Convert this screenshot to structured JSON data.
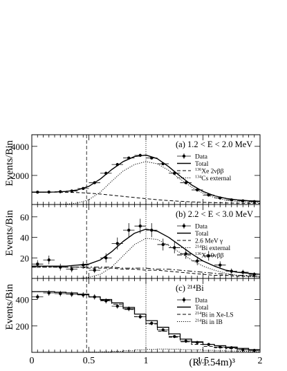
{
  "chart_data": [
    {
      "type": "line",
      "panel_label": "(a) 1.2 < E < 2.0 MeV",
      "ylabel": "Events/Bin",
      "xlim": [
        0,
        2
      ],
      "ylim": [
        0,
        4800
      ],
      "yticks": [
        2000,
        4000
      ],
      "legend_position": "top-right",
      "series": [
        {
          "name": "Data",
          "style": "points",
          "x": [
            0.05,
            0.15,
            0.25,
            0.35,
            0.45,
            0.55,
            0.65,
            0.75,
            0.85,
            0.95,
            1.05,
            1.15,
            1.25,
            1.35,
            1.45,
            1.55,
            1.65,
            1.75,
            1.85,
            1.95
          ],
          "values": [
            850,
            860,
            880,
            930,
            1100,
            1500,
            2150,
            2750,
            3200,
            3380,
            3200,
            2800,
            2150,
            1500,
            1000,
            650,
            450,
            320,
            250,
            200
          ]
        },
        {
          "name": "Total",
          "style": "solid",
          "x": [
            0,
            0.1,
            0.2,
            0.3,
            0.4,
            0.5,
            0.6,
            0.7,
            0.8,
            0.9,
            1.0,
            1.1,
            1.2,
            1.3,
            1.4,
            1.5,
            1.6,
            1.7,
            1.8,
            1.9,
            2.0
          ],
          "values": [
            850,
            850,
            860,
            900,
            1000,
            1250,
            1750,
            2400,
            2950,
            3300,
            3400,
            3150,
            2600,
            1950,
            1350,
            900,
            600,
            420,
            320,
            260,
            220
          ]
        },
        {
          "name": "Xe 2νββ",
          "sup": "136",
          "style": "dashed",
          "x": [
            0,
            0.1,
            0.2,
            0.3,
            0.4,
            0.5,
            0.6,
            0.7,
            0.8,
            0.9,
            1.0,
            1.1,
            1.2,
            1.3,
            1.4,
            1.5,
            1.6,
            1.7,
            1.8,
            1.9,
            2.0
          ],
          "values": [
            850,
            850,
            850,
            840,
            820,
            780,
            720,
            640,
            560,
            480,
            400,
            330,
            270,
            220,
            180,
            150,
            125,
            105,
            90,
            80,
            70
          ]
        },
        {
          "name": "Cs external",
          "sup": "134",
          "style": "dotted",
          "x": [
            0,
            0.1,
            0.2,
            0.3,
            0.4,
            0.5,
            0.6,
            0.7,
            0.8,
            0.9,
            1.0,
            1.1,
            1.2,
            1.3,
            1.4,
            1.5,
            1.6,
            1.7,
            1.8,
            1.9,
            2.0
          ],
          "values": [
            0,
            0,
            0,
            20,
            100,
            330,
            850,
            1600,
            2300,
            2750,
            2950,
            2800,
            2350,
            1750,
            1200,
            780,
            480,
            300,
            210,
            160,
            130
          ]
        }
      ]
    },
    {
      "type": "line",
      "panel_label": "(b) 2.2 < E < 3.0 MeV",
      "ylabel": "Events/Bin",
      "xlim": [
        0,
        2
      ],
      "ylim": [
        0,
        72
      ],
      "yticks": [
        20,
        40,
        60
      ],
      "legend_position": "top-right",
      "series": [
        {
          "name": "Data",
          "style": "points",
          "x": [
            0.05,
            0.15,
            0.25,
            0.35,
            0.45,
            0.55,
            0.65,
            0.75,
            0.85,
            0.95,
            1.05,
            1.15,
            1.25,
            1.35,
            1.45,
            1.55,
            1.65,
            1.75,
            1.85,
            1.95
          ],
          "values": [
            14,
            18,
            11,
            9,
            13,
            8,
            20,
            34,
            47,
            51,
            47,
            33,
            30,
            24,
            17,
            22,
            13,
            7,
            6,
            4
          ]
        },
        {
          "name": "Total",
          "style": "solid",
          "x": [
            0,
            0.1,
            0.2,
            0.3,
            0.4,
            0.5,
            0.6,
            0.7,
            0.8,
            0.9,
            1.0,
            1.1,
            1.2,
            1.3,
            1.4,
            1.5,
            1.6,
            1.7,
            1.8,
            1.9,
            2.0
          ],
          "values": [
            12,
            12,
            12,
            12,
            13,
            14,
            18,
            26,
            36,
            44,
            48,
            46,
            40,
            32,
            24,
            17,
            12,
            8,
            6,
            5,
            4
          ]
        },
        {
          "name": "2.6 MeV γ",
          "style": "dashed",
          "x": [
            0,
            0.1,
            0.2,
            0.3,
            0.4,
            0.5,
            0.6,
            0.7,
            0.8,
            0.9,
            1.0,
            1.1,
            1.2,
            1.3,
            1.4,
            1.5,
            1.6,
            1.7,
            1.8,
            1.9,
            2.0
          ],
          "values": [
            11,
            11,
            11,
            11,
            11,
            10,
            10,
            10,
            9,
            9,
            8,
            8,
            7,
            6,
            5,
            4,
            3,
            3,
            2,
            2,
            2
          ]
        },
        {
          "name": "Bi external",
          "sup": "214",
          "style": "dotted",
          "x": [
            0,
            0.1,
            0.2,
            0.3,
            0.4,
            0.5,
            0.6,
            0.7,
            0.8,
            0.9,
            1.0,
            1.1,
            1.2,
            1.3,
            1.4,
            1.5,
            1.6,
            1.7,
            1.8,
            1.9,
            2.0
          ],
          "values": [
            0,
            0,
            0,
            0,
            0,
            1,
            4,
            11,
            22,
            33,
            39,
            38,
            32,
            25,
            18,
            12,
            8,
            5,
            3,
            2,
            1
          ]
        },
        {
          "name": "Xe 0νββ",
          "sup": "136",
          "style": "dashdot",
          "x": [
            0,
            0.1,
            0.2,
            0.3,
            0.4,
            0.5,
            0.6,
            0.7,
            0.8,
            0.9,
            1.0,
            1.1,
            1.2,
            1.3,
            1.4,
            1.5,
            1.6,
            1.7,
            1.8,
            1.9,
            2.0
          ],
          "values": [
            11,
            11,
            11,
            11,
            11,
            11,
            11,
            11,
            10,
            10,
            10,
            9,
            9,
            8,
            7,
            6,
            5,
            4,
            3,
            3,
            2
          ]
        }
      ]
    },
    {
      "type": "line",
      "panel_label": "(c) ²¹⁴Bi",
      "ylabel": "Events/Bin",
      "xlabel": "(R/1.54m)³",
      "xlim": [
        0,
        2
      ],
      "ylim": [
        0,
        560
      ],
      "yticks": [
        200,
        400
      ],
      "xticks": [
        0,
        0.5,
        1,
        1.5,
        2
      ],
      "legend_position": "top-right",
      "series": [
        {
          "name": "Data",
          "style": "points",
          "x": [
            0.05,
            0.15,
            0.25,
            0.35,
            0.45,
            0.55,
            0.65,
            0.75,
            0.85,
            0.95,
            1.05,
            1.15,
            1.25,
            1.35,
            1.45,
            1.55,
            1.65,
            1.75,
            1.85,
            1.95
          ],
          "values": [
            420,
            450,
            445,
            440,
            435,
            420,
            390,
            350,
            330,
            270,
            220,
            170,
            120,
            85,
            75,
            60,
            40,
            35,
            20,
            15
          ]
        },
        {
          "name": "Total",
          "style": "solid-step",
          "x": [
            0.05,
            0.15,
            0.25,
            0.35,
            0.45,
            0.55,
            0.65,
            0.75,
            0.85,
            0.95,
            1.05,
            1.15,
            1.25,
            1.35,
            1.45,
            1.55,
            1.65,
            1.75,
            1.85,
            1.95
          ],
          "values": [
            460,
            460,
            455,
            450,
            440,
            420,
            400,
            375,
            340,
            290,
            240,
            190,
            140,
            100,
            80,
            60,
            50,
            40,
            30,
            20
          ]
        },
        {
          "name": "Bi in Xe-LS",
          "sup": "214",
          "style": "dashed-step",
          "x": [
            0.05,
            0.15,
            0.25,
            0.35,
            0.45,
            0.55,
            0.65,
            0.75,
            0.85,
            0.95,
            1.05,
            1.15,
            1.25,
            1.35,
            1.45,
            1.55,
            1.65,
            1.75,
            1.85,
            1.95
          ],
          "values": [
            460,
            460,
            455,
            450,
            440,
            420,
            395,
            365,
            325,
            270,
            215,
            160,
            115,
            80,
            60,
            45,
            35,
            28,
            20,
            15
          ]
        },
        {
          "name": "Bi in IB",
          "sup": "214",
          "style": "dotted-step",
          "x": [
            0.05,
            0.15,
            0.25,
            0.35,
            0.45,
            0.55,
            0.65,
            0.75,
            0.85,
            0.95,
            1.05,
            1.15,
            1.25,
            1.35,
            1.45,
            1.55,
            1.65,
            1.75,
            1.85,
            1.95
          ],
          "values": [
            0,
            0,
            0,
            0,
            0,
            2,
            4,
            8,
            12,
            18,
            22,
            25,
            24,
            20,
            18,
            15,
            12,
            10,
            8,
            5
          ]
        }
      ]
    }
  ],
  "reference_lines_x": [
    0.48,
    1.0
  ]
}
